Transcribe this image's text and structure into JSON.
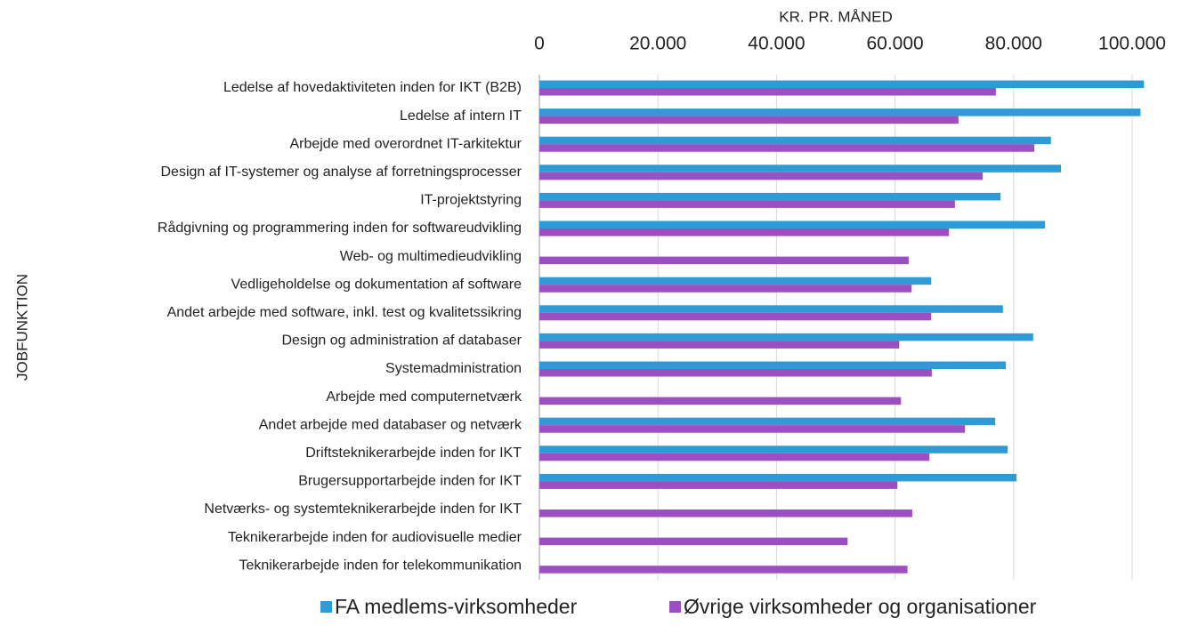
{
  "chart_data": {
    "type": "bar",
    "orientation": "horizontal",
    "x_label": "KR. PR. MÅNED",
    "y_label": "JOBFUNKTION",
    "categories": [
      "Ledelse af hovedaktiviteten inden for IKT (B2B)",
      "Ledelse af intern IT",
      "Arbejde med overordnet IT-arkitektur",
      "Design af IT-systemer og analyse af forretningsprocesser",
      "IT-projektstyring",
      "Rådgivning og programmering inden for softwareudvikling",
      "Web- og multimedieudvikling",
      "Vedligeholdelse og dokumentation af software",
      "Andet arbejde med software, inkl. test og kvalitetssikring",
      "Design og administration af databaser",
      "Systemadministration",
      "Arbejde med computernetværk",
      "Andet arbejde med databaser og netværk",
      "Driftsteknikerarbejde inden for IKT",
      "Brugersupportarbejde inden for IKT",
      "Netværks- og systemteknikerarbejde inden for IKT",
      "Teknikerarbejde inden for audiovisuelle medier",
      "Teknikerarbejde inden for telekommunikation"
    ],
    "series": [
      {
        "name": "FA medlems-virksomheder",
        "color": "#2e9bd6",
        "values": [
          102000,
          101400,
          86300,
          88000,
          77800,
          85300,
          null,
          66100,
          78200,
          83300,
          78700,
          null,
          76900,
          79000,
          80500,
          null,
          null,
          null
        ]
      },
      {
        "name": "Øvrige virksomheder og organisationer",
        "color": "#9b4fc0",
        "values": [
          77000,
          70700,
          83500,
          74800,
          70100,
          69100,
          62300,
          62800,
          66100,
          60700,
          66200,
          61000,
          71800,
          65800,
          60400,
          62900,
          52000,
          62100
        ]
      }
    ],
    "xlim": [
      0,
      105000
    ],
    "xticks": [
      0,
      {
        "value": 20000,
        "label": "20.000"
      },
      {
        "value": 40000,
        "label": "40.000"
      },
      {
        "value": 60000,
        "label": "60.000"
      },
      {
        "value": 80000,
        "label": "80.000"
      },
      {
        "value": 100000,
        "label": "100.000"
      }
    ],
    "grid": true,
    "legend": "bottom"
  }
}
